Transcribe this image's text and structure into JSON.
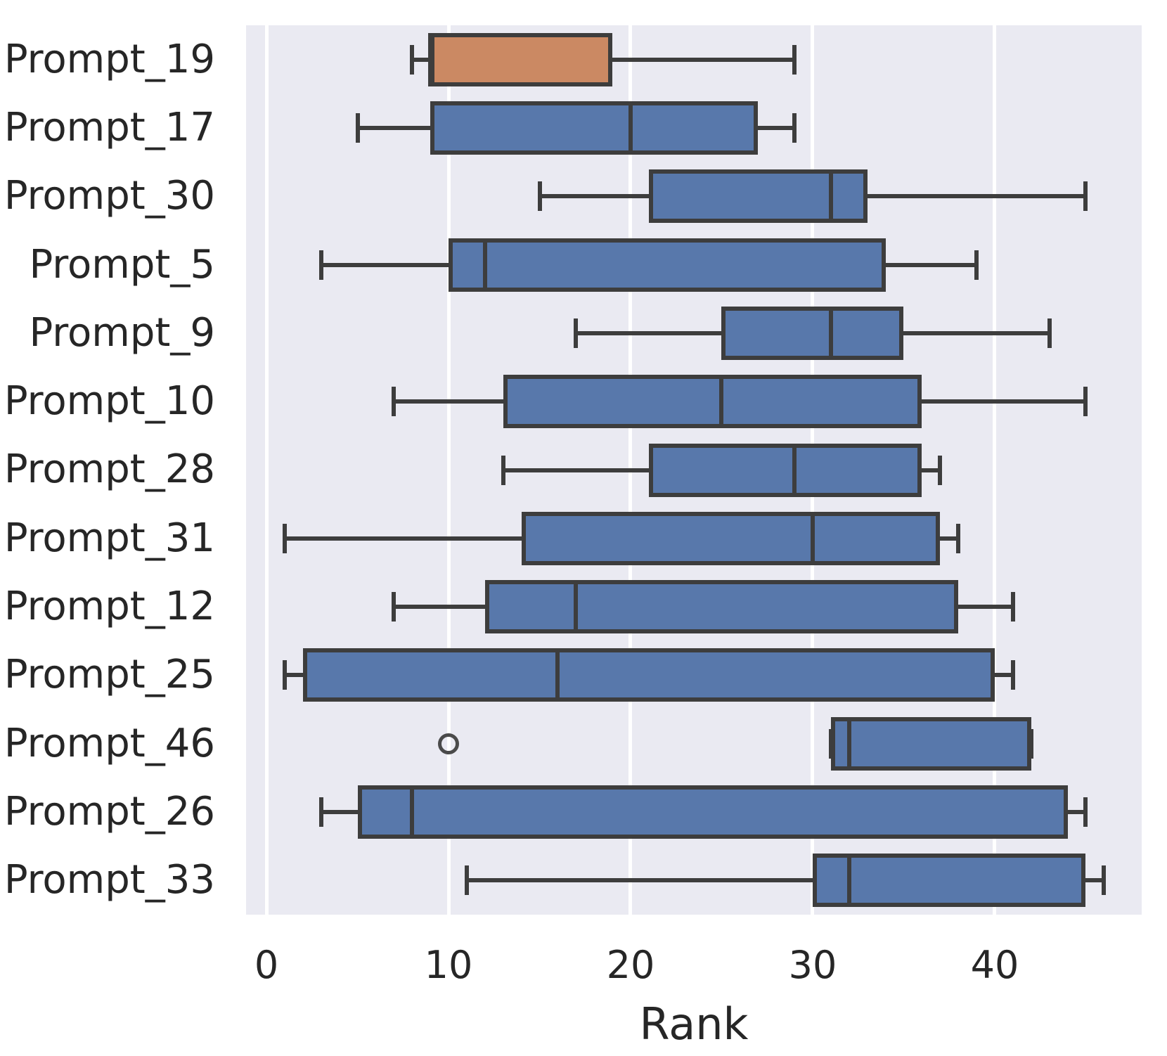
{
  "chart_data": {
    "type": "boxplot",
    "orientation": "horizontal",
    "xlabel": "Rank",
    "ylabel": "",
    "xticks": [
      0,
      10,
      20,
      30,
      40
    ],
    "xlim": [
      -1.12,
      48.07
    ],
    "grid": "vertical white gridlines on light lavender background",
    "legend": "none",
    "colors": {
      "background": "#eaeaf2",
      "grid": "#ffffff",
      "edge": "#3d3d3d",
      "text": "#262626",
      "blue": "#5878ab",
      "orange": "#cb8963"
    },
    "rows": [
      {
        "label": "Prompt_19",
        "color": "orange",
        "whisker_low": 8,
        "q1": 9,
        "median": 9,
        "q3": 19,
        "whisker_high": 29,
        "outliers": []
      },
      {
        "label": "Prompt_17",
        "color": "blue",
        "whisker_low": 5,
        "q1": 9,
        "median": 20,
        "q3": 27,
        "whisker_high": 29,
        "outliers": []
      },
      {
        "label": "Prompt_30",
        "color": "blue",
        "whisker_low": 15,
        "q1": 21,
        "median": 31,
        "q3": 33,
        "whisker_high": 45,
        "outliers": []
      },
      {
        "label": "Prompt_5",
        "color": "blue",
        "whisker_low": 3,
        "q1": 10,
        "median": 12,
        "q3": 34,
        "whisker_high": 39,
        "outliers": []
      },
      {
        "label": "Prompt_9",
        "color": "blue",
        "whisker_low": 17,
        "q1": 25,
        "median": 31,
        "q3": 35,
        "whisker_high": 43,
        "outliers": []
      },
      {
        "label": "Prompt_10",
        "color": "blue",
        "whisker_low": 7,
        "q1": 13,
        "median": 25,
        "q3": 36,
        "whisker_high": 45,
        "outliers": []
      },
      {
        "label": "Prompt_28",
        "color": "blue",
        "whisker_low": 13,
        "q1": 21,
        "median": 29,
        "q3": 36,
        "whisker_high": 37,
        "outliers": []
      },
      {
        "label": "Prompt_31",
        "color": "blue",
        "whisker_low": 1,
        "q1": 14,
        "median": 30,
        "q3": 37,
        "whisker_high": 38,
        "outliers": []
      },
      {
        "label": "Prompt_12",
        "color": "blue",
        "whisker_low": 7,
        "q1": 12,
        "median": 17,
        "q3": 38,
        "whisker_high": 41,
        "outliers": []
      },
      {
        "label": "Prompt_25",
        "color": "blue",
        "whisker_low": 1,
        "q1": 2,
        "median": 16,
        "q3": 40,
        "whisker_high": 41,
        "outliers": []
      },
      {
        "label": "Prompt_46",
        "color": "blue",
        "whisker_low": 31,
        "q1": 31,
        "median": 32,
        "q3": 42,
        "whisker_high": 42,
        "outliers": [
          10
        ]
      },
      {
        "label": "Prompt_26",
        "color": "blue",
        "whisker_low": 3,
        "q1": 5,
        "median": 8,
        "q3": 44,
        "whisker_high": 45,
        "outliers": []
      },
      {
        "label": "Prompt_33",
        "color": "blue",
        "whisker_low": 11,
        "q1": 30,
        "median": 32,
        "q3": 45,
        "whisker_high": 46,
        "outliers": []
      }
    ]
  }
}
